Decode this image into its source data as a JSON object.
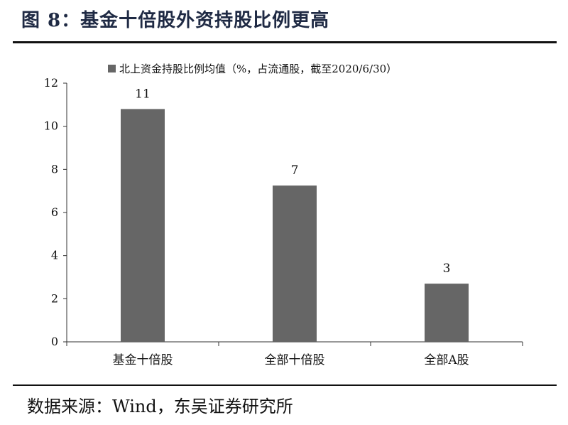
{
  "figure": {
    "title": "图 8：基金十倍股外资持股比例更高",
    "source": "数据来源：Wind，东吴证券研究所"
  },
  "chart_data": {
    "type": "bar",
    "categories": [
      "基金十倍股",
      "全部十倍股",
      "全部A股"
    ],
    "series": [
      {
        "name": "北上资金持股比例均值（%，占流通股，截至2020/6/30）",
        "values": [
          10.8,
          7.25,
          2.7
        ],
        "color": "#666666"
      }
    ],
    "data_labels": [
      "11",
      "7",
      "3"
    ],
    "ylim": [
      0,
      12
    ],
    "yticks": [
      0,
      2,
      4,
      6,
      8,
      10,
      12
    ],
    "grid": false,
    "legend_position": "top"
  }
}
